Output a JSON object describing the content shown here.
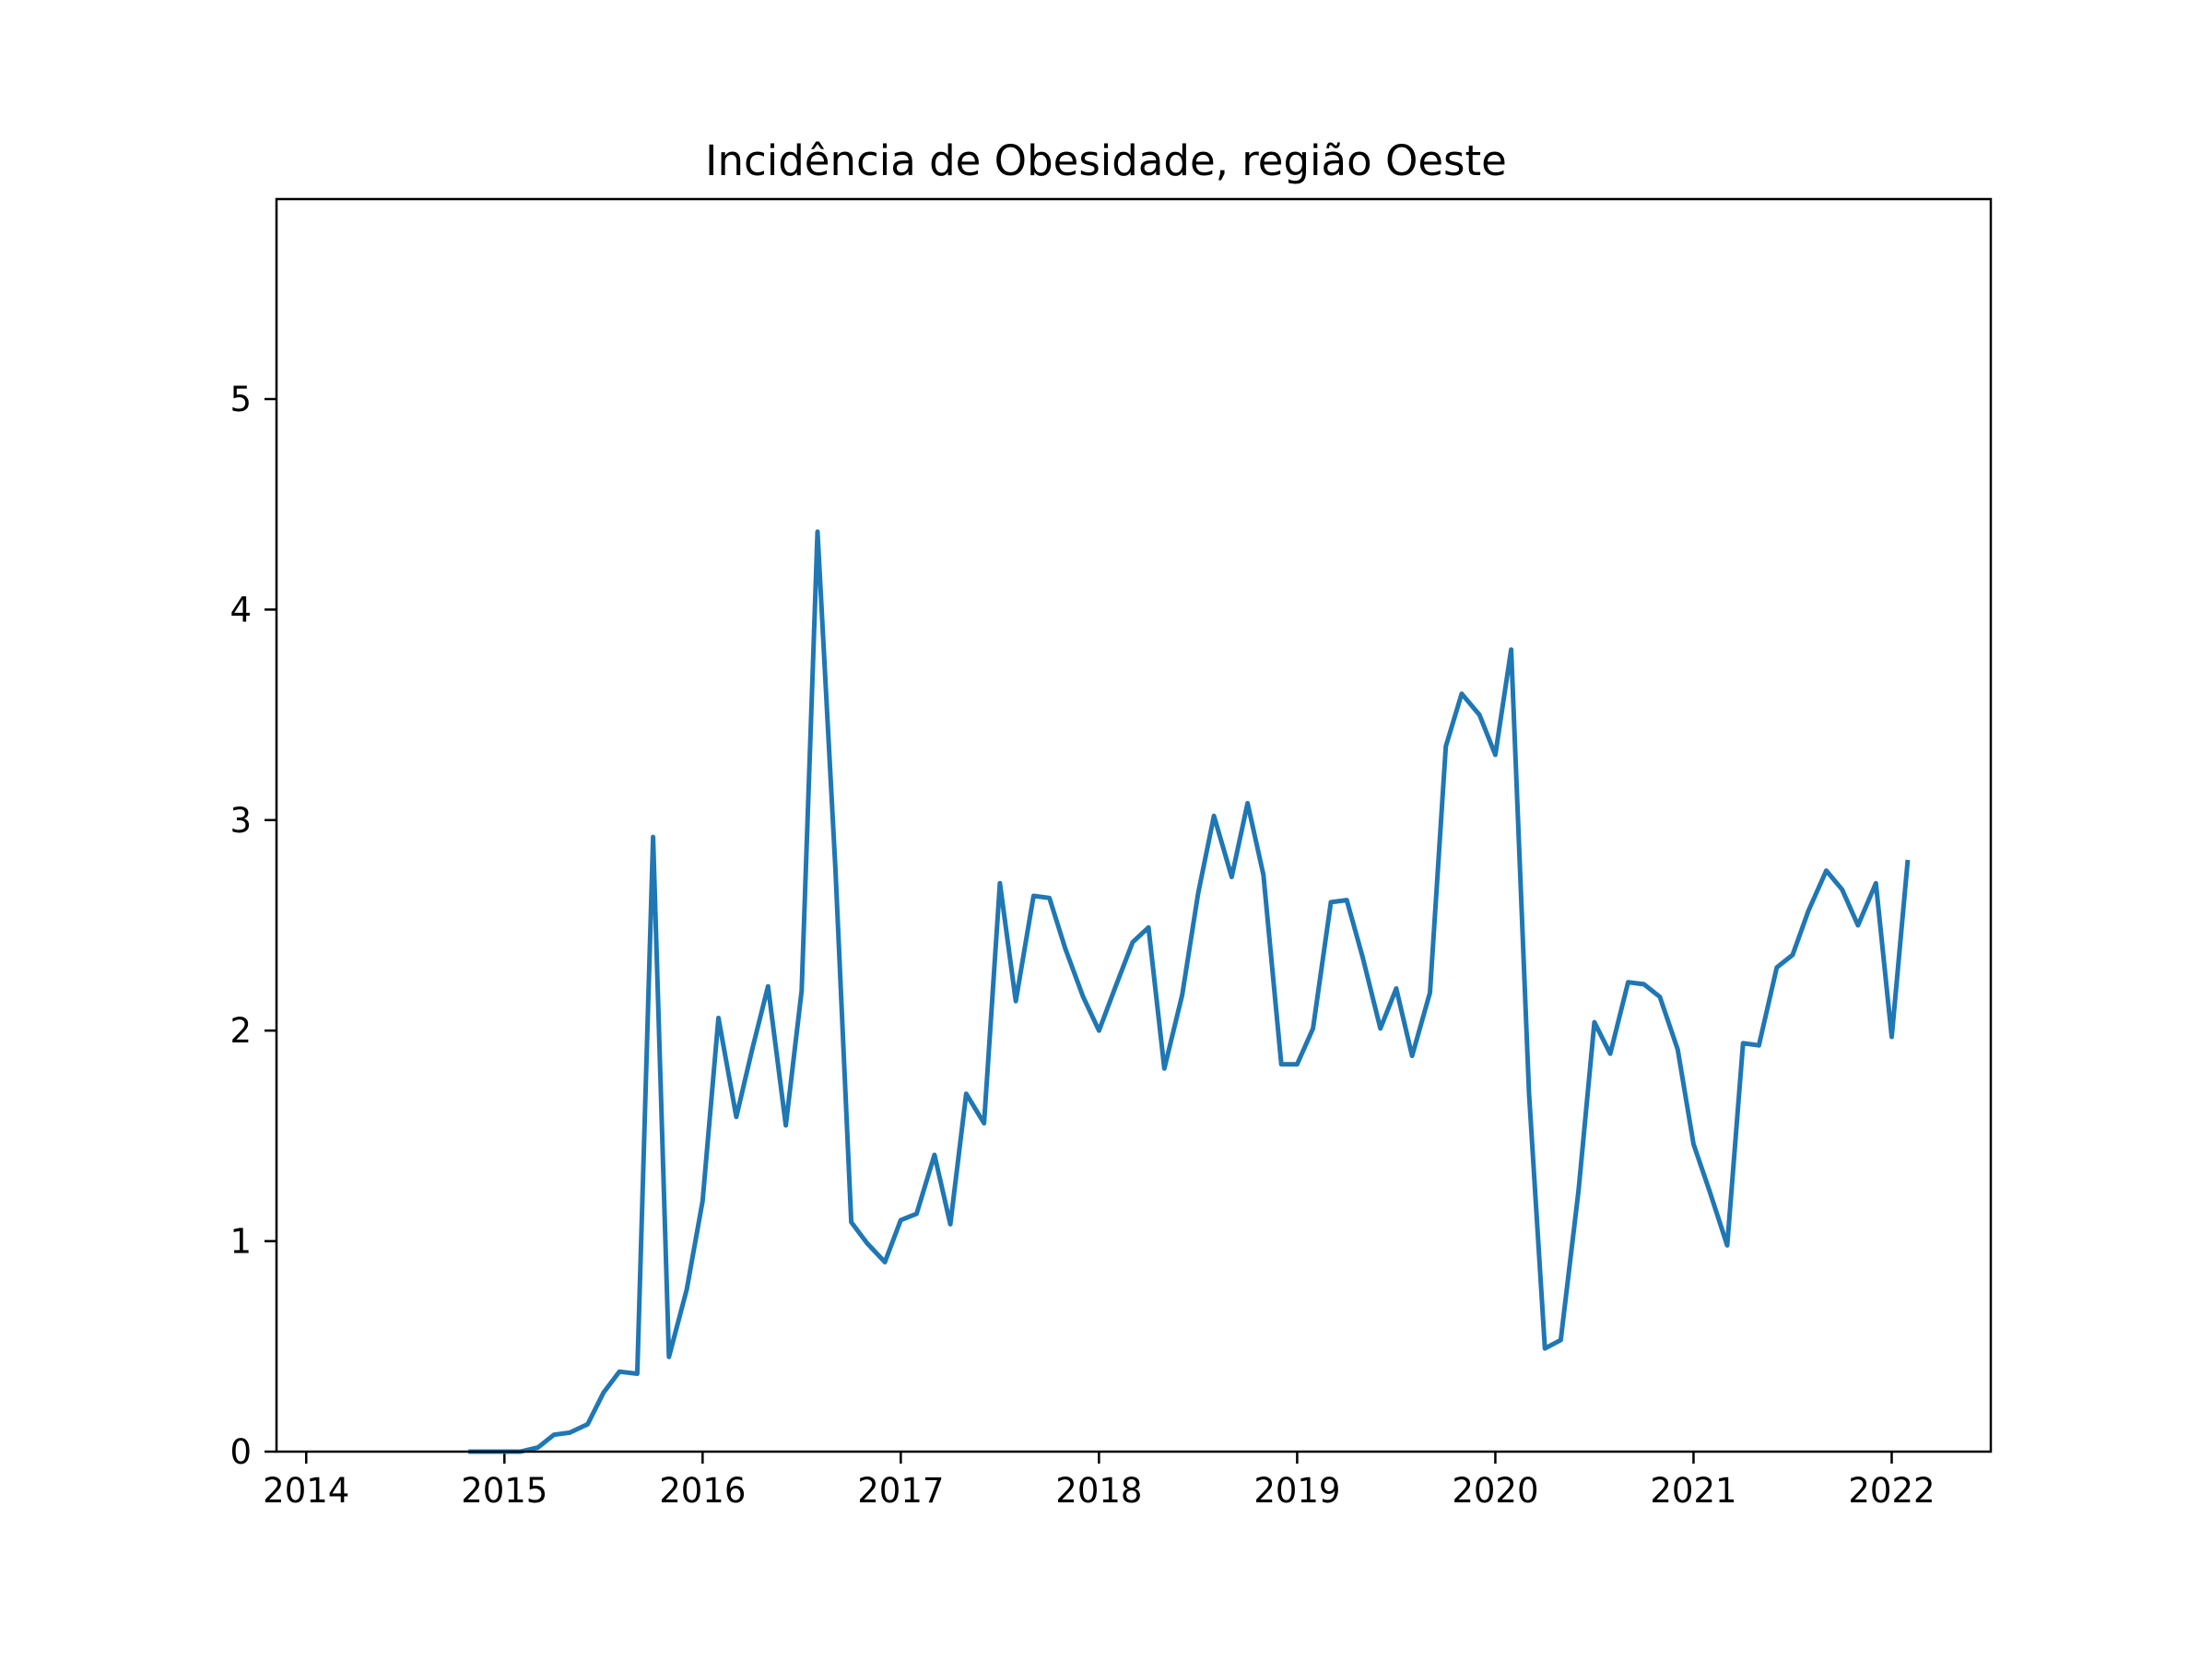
{
  "chart_data": {
    "type": "line",
    "title": "Incidência de Obesidade, região Oeste",
    "xlabel": "",
    "ylabel": "",
    "grid": false,
    "legend": "none",
    "xlim": [
      2013.85,
      2022.5
    ],
    "ylim": [
      0,
      5.95
    ],
    "xticks": [
      2014,
      2015,
      2016,
      2017,
      2018,
      2019,
      2020,
      2021,
      2022
    ],
    "xtick_labels": [
      "2014",
      "2015",
      "2016",
      "2017",
      "2018",
      "2019",
      "2020",
      "2021",
      "2022"
    ],
    "yticks": [
      0,
      1,
      2,
      3,
      4,
      5
    ],
    "ytick_labels": [
      "0",
      "1",
      "2",
      "3",
      "4",
      "5"
    ],
    "series": [
      {
        "color": "#1f77b4",
        "x": [
          2014.83,
          2014.92,
          2015.0,
          2015.08,
          2015.17,
          2015.25,
          2015.33,
          2015.42,
          2015.5,
          2015.58,
          2015.67,
          2015.75,
          2015.83,
          2015.92,
          2016.0,
          2016.08,
          2016.17,
          2016.25,
          2016.33,
          2016.42,
          2016.5,
          2016.58,
          2016.67,
          2016.75,
          2016.83,
          2016.92,
          2017.0,
          2017.08,
          2017.17,
          2017.25,
          2017.33,
          2017.42,
          2017.5,
          2017.58,
          2017.67,
          2017.75,
          2017.83,
          2017.92,
          2018.0,
          2018.08,
          2018.17,
          2018.25,
          2018.33,
          2018.42,
          2018.5,
          2018.58,
          2018.67,
          2018.75,
          2018.83,
          2018.92,
          2019.0,
          2019.08,
          2019.17,
          2019.25,
          2019.33,
          2019.42,
          2019.5,
          2019.58,
          2019.67,
          2019.75,
          2019.83,
          2019.92,
          2020.0,
          2020.08,
          2020.17,
          2020.25,
          2020.33,
          2020.42,
          2020.5,
          2020.58,
          2020.67,
          2020.75,
          2020.83,
          2020.92,
          2021.0,
          2021.08,
          2021.17,
          2021.25,
          2021.33,
          2021.42,
          2021.5,
          2021.58,
          2021.67,
          2021.75,
          2021.83,
          2021.92,
          2022.0,
          2022.08
        ],
        "y": [
          0.0,
          0.0,
          0.0,
          0.0,
          0.02,
          0.08,
          0.09,
          0.13,
          0.28,
          0.38,
          0.37,
          2.92,
          0.45,
          0.77,
          1.19,
          2.06,
          1.59,
          1.91,
          2.21,
          1.55,
          2.19,
          4.37,
          2.77,
          1.09,
          0.99,
          0.9,
          1.1,
          1.13,
          1.41,
          1.08,
          1.7,
          1.56,
          2.7,
          2.14,
          2.64,
          2.63,
          2.39,
          2.16,
          2.0,
          2.2,
          2.42,
          2.49,
          1.82,
          2.17,
          2.65,
          3.02,
          2.73,
          3.08,
          2.74,
          1.84,
          1.84,
          2.01,
          2.61,
          2.62,
          2.35,
          2.01,
          2.2,
          1.88,
          2.18,
          3.35,
          3.6,
          3.5,
          3.31,
          3.81,
          1.7,
          0.49,
          0.53,
          1.24,
          2.04,
          1.89,
          2.23,
          2.22,
          2.16,
          1.91,
          1.46,
          1.24,
          0.98,
          1.94,
          1.93,
          2.3,
          2.36,
          2.57,
          2.76,
          2.67,
          2.5,
          2.7,
          1.97,
          2.8
        ]
      }
    ]
  }
}
